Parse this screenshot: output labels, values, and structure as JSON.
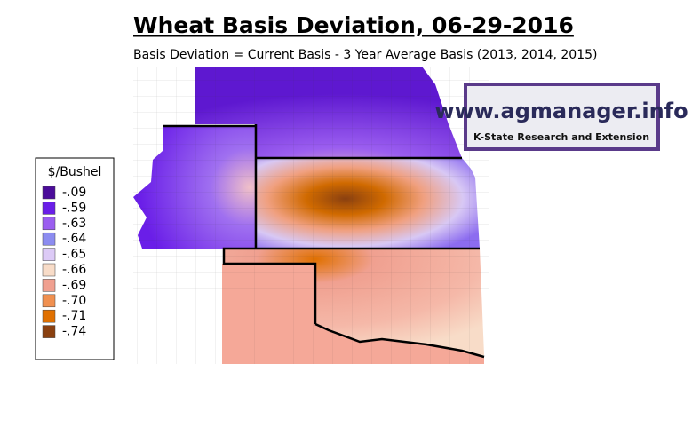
{
  "header": {
    "title": "Wheat Basis Deviation, 06-29-2016",
    "subtitle": "Basis Deviation = Current Basis - 3 Year Average Basis (2013, 2014, 2015)"
  },
  "logo": {
    "url": "www.agmanager.info",
    "org": "K-State Research and Extension"
  },
  "legend": {
    "title": "$/Bushel",
    "items": [
      {
        "label": "-.09",
        "color": "#4b0c9a"
      },
      {
        "label": "-.59",
        "color": "#6a1ee8"
      },
      {
        "label": "-.63",
        "color": "#9b5ef0"
      },
      {
        "label": "-.64",
        "color": "#8c8cf0"
      },
      {
        "label": "-.65",
        "color": "#dccaf6"
      },
      {
        "label": "-.66",
        "color": "#f8dcc8"
      },
      {
        "label": "-.69",
        "color": "#f0a090"
      },
      {
        "label": "-.70",
        "color": "#f09050"
      },
      {
        "label": "-.71",
        "color": "#e07000"
      },
      {
        "label": "-.74",
        "color": "#8a4010"
      }
    ]
  }
}
